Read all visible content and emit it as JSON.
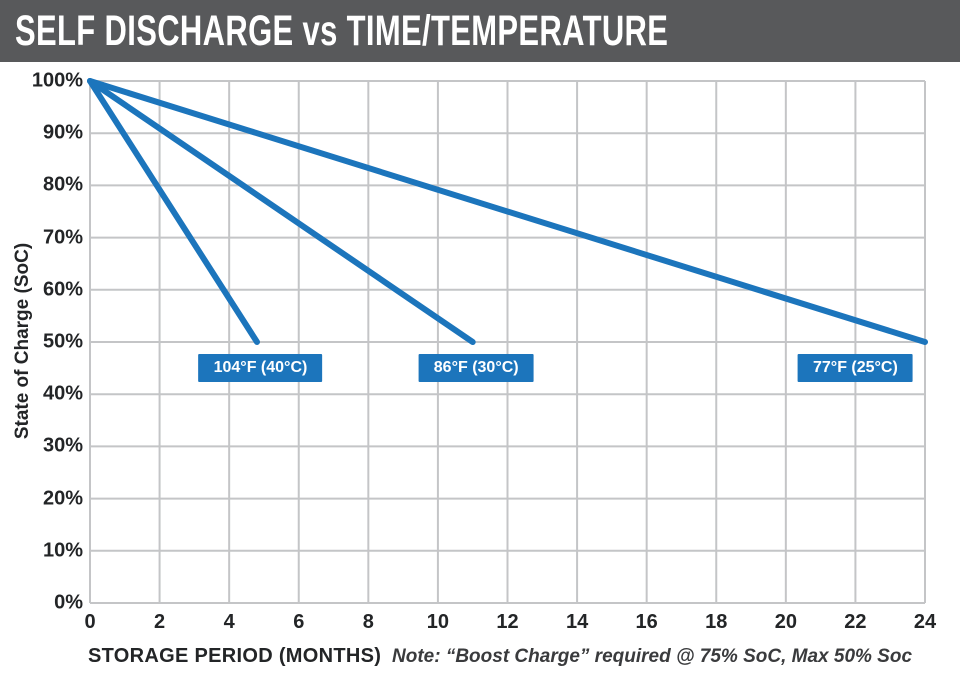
{
  "header": {
    "title": "SELF DISCHARGE vs TIME/TEMPERATURE"
  },
  "colors": {
    "header_bg": "#58595B",
    "title_text": "#FFFFFF",
    "line_blue": "#1C75BC",
    "label_box_bg": "#1C75BC",
    "label_box_text": "#FFFFFF",
    "grid": "#C4C5C7",
    "axis_text": "#232527"
  },
  "chart_data": {
    "type": "line",
    "title": "SELF DISCHARGE vs TIME/TEMPERATURE",
    "xlabel": "STORAGE PERIOD (MONTHS)",
    "ylabel": "State of Charge (SoC)",
    "note": "Note: “Boost Charge” required @ 75% SoC, Max 50% Soc",
    "x_range": [
      0,
      24
    ],
    "y_range": [
      0,
      100
    ],
    "grid": true,
    "legend_position": "inline-boxes-near-line-ends",
    "x_ticks": [
      {
        "v": 0,
        "label": "0"
      },
      {
        "v": 2,
        "label": "2"
      },
      {
        "v": 4,
        "label": "4"
      },
      {
        "v": 6,
        "label": "6"
      },
      {
        "v": 8,
        "label": "8"
      },
      {
        "v": 10,
        "label": "10"
      },
      {
        "v": 12,
        "label": "12"
      },
      {
        "v": 14,
        "label": "14"
      },
      {
        "v": 16,
        "label": "16"
      },
      {
        "v": 18,
        "label": "18"
      },
      {
        "v": 20,
        "label": "20"
      },
      {
        "v": 22,
        "label": "22"
      },
      {
        "v": 24,
        "label": "24"
      }
    ],
    "y_ticks": [
      {
        "v": 0,
        "label": "0%"
      },
      {
        "v": 10,
        "label": "10%"
      },
      {
        "v": 20,
        "label": "20%"
      },
      {
        "v": 30,
        "label": "30%"
      },
      {
        "v": 40,
        "label": "40%"
      },
      {
        "v": 50,
        "label": "50%"
      },
      {
        "v": 60,
        "label": "60%"
      },
      {
        "v": 70,
        "label": "70%"
      },
      {
        "v": 80,
        "label": "80%"
      },
      {
        "v": 90,
        "label": "90%"
      },
      {
        "v": 100,
        "label": "100%"
      }
    ],
    "series": [
      {
        "name": "104°F (40°C)",
        "points": [
          [
            0,
            100
          ],
          [
            4.8,
            50
          ]
        ]
      },
      {
        "name": "86°F (30°C)",
        "points": [
          [
            0,
            100
          ],
          [
            11,
            50
          ]
        ]
      },
      {
        "name": "77°F (25°C)",
        "points": [
          [
            0,
            100
          ],
          [
            24,
            50
          ]
        ]
      }
    ],
    "annotations": [
      {
        "text": "104°F (40°C)",
        "x": 4.9,
        "y": 45
      },
      {
        "text": "86°F (30°C)",
        "x": 11.1,
        "y": 45
      },
      {
        "text": "77°F (25°C)",
        "x": 22.0,
        "y": 45
      }
    ]
  }
}
